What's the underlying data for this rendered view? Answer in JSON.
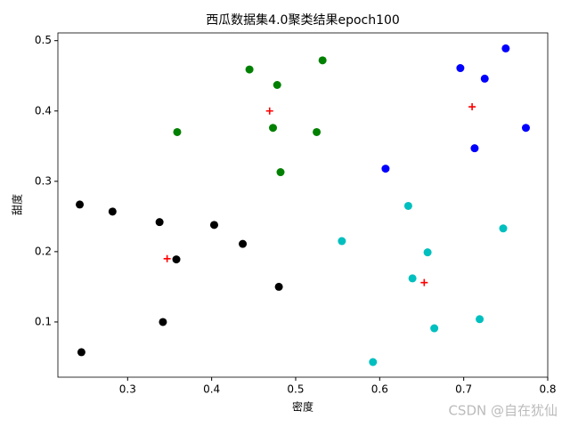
{
  "chart_data": {
    "type": "scatter",
    "title": "西瓜数据集4.0聚类结果epoch100",
    "x_label": "密度",
    "y_label": "甜度",
    "xlim": [
      0.217,
      0.8
    ],
    "ylim": [
      0.0215,
      0.511
    ],
    "xticks": [
      0.3,
      0.4,
      0.5,
      0.6,
      0.7,
      0.8
    ],
    "yticks": [
      0.1,
      0.2,
      0.3,
      0.4,
      0.5
    ],
    "series": [
      {
        "color": "#008000",
        "marker": "circle",
        "x": [
          0.445,
          0.532,
          0.478,
          0.359,
          0.473,
          0.525,
          0.482
        ],
        "values": [
          0.459,
          0.472,
          0.437,
          0.37,
          0.376,
          0.37,
          0.313
        ]
      },
      {
        "color": "#0000ff",
        "marker": "circle",
        "x": [
          0.75,
          0.696,
          0.725,
          0.774,
          0.713,
          0.607
        ],
        "values": [
          0.489,
          0.461,
          0.446,
          0.376,
          0.347,
          0.318
        ]
      },
      {
        "color": "#000000",
        "marker": "circle",
        "x": [
          0.243,
          0.282,
          0.338,
          0.403,
          0.437,
          0.358,
          0.48,
          0.342,
          0.245
        ],
        "values": [
          0.267,
          0.257,
          0.242,
          0.238,
          0.211,
          0.189,
          0.15,
          0.1,
          0.057
        ]
      },
      {
        "color": "#00bfbf",
        "marker": "circle",
        "x": [
          0.634,
          0.555,
          0.747,
          0.657,
          0.639,
          0.719,
          0.665,
          0.592
        ],
        "values": [
          0.265,
          0.215,
          0.233,
          0.199,
          0.162,
          0.104,
          0.091,
          0.043
        ]
      },
      {
        "color": "#ff0000",
        "marker": "plus",
        "x": [
          0.469,
          0.71,
          0.347,
          0.653
        ],
        "values": [
          0.4,
          0.406,
          0.19,
          0.156
        ]
      }
    ]
  },
  "watermark": "CSDN @自在犹仙"
}
